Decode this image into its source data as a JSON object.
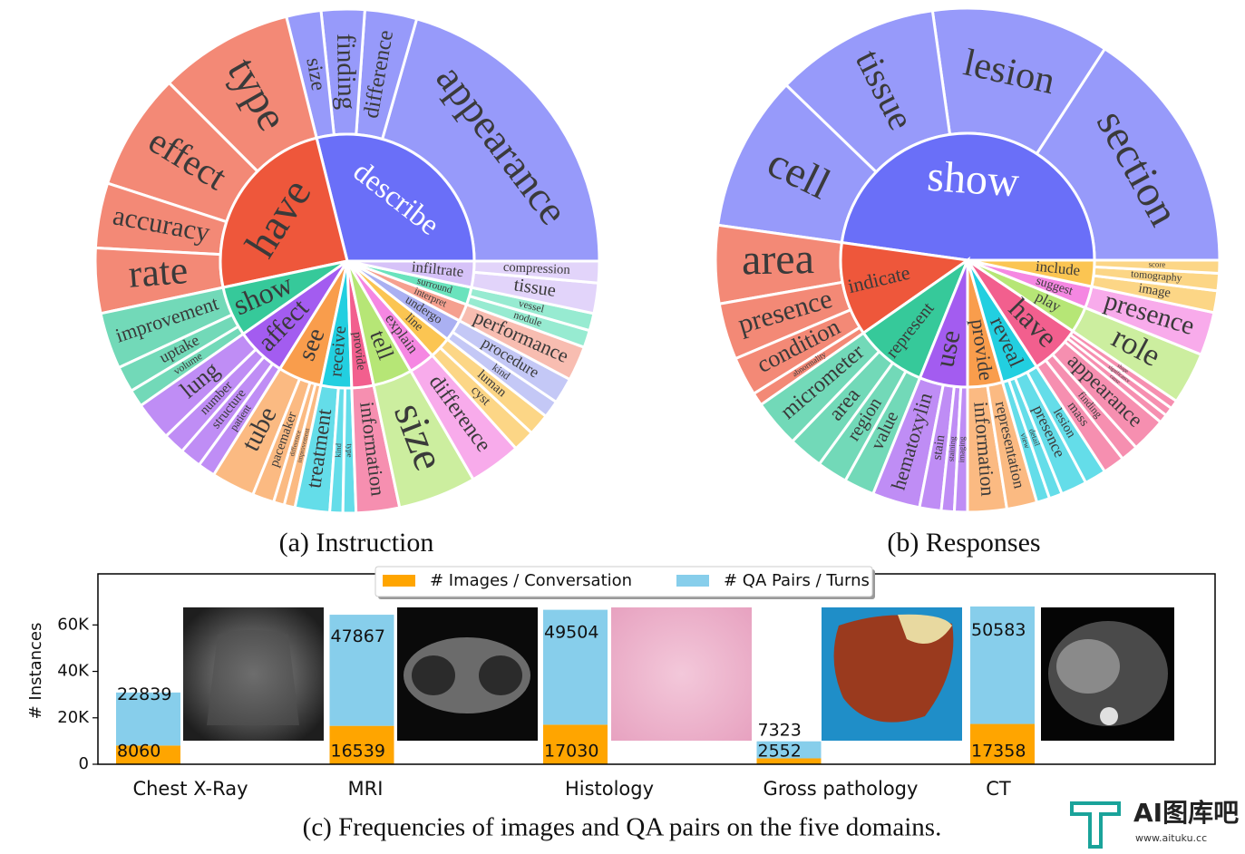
{
  "chart_data": [
    {
      "type": "sunburst",
      "title": "(a) Instruction",
      "nodes": [
        {
          "name": "describe",
          "color": "#6a6ff8",
          "value": 104,
          "children": [
            {
              "name": "appearance",
              "value": 74
            },
            {
              "name": "difference",
              "value": 12
            },
            {
              "name": "finding",
              "value": 10
            },
            {
              "name": "size",
              "value": 8
            }
          ]
        },
        {
          "name": "have",
          "color": "#ee573b",
          "value": 88,
          "children": [
            {
              "name": "type",
              "value": 31
            },
            {
              "name": "effect",
              "value": 27
            },
            {
              "name": "accuracy",
              "value": 15
            },
            {
              "name": "rate",
              "value": 15
            }
          ]
        },
        {
          "name": "show",
          "color": "#36c99a",
          "value": 23,
          "children": [
            {
              "name": "improvement",
              "value": 13
            },
            {
              "name": "uptake",
              "value": 6
            },
            {
              "name": "volume",
              "value": 4
            }
          ]
        },
        {
          "name": "affect",
          "color": "#a35cf0",
          "value": 23,
          "children": [
            {
              "name": "lung",
              "value": 9
            },
            {
              "name": "number",
              "value": 5
            },
            {
              "name": "structure",
              "value": 5
            },
            {
              "name": "patient",
              "value": 4
            }
          ]
        },
        {
          "name": "see",
          "color": "#f99d4c",
          "value": 20,
          "children": [
            {
              "name": "tube",
              "value": 10
            },
            {
              "name": "pacemaker",
              "value": 5
            },
            {
              "name": "difference",
              "value": 2.5
            },
            {
              "name": "improvement",
              "value": 2.5
            }
          ]
        },
        {
          "name": "receive",
          "color": "#22cfe0",
          "value": 14,
          "children": [
            {
              "name": "treatment",
              "value": 8
            },
            {
              "name": "kind",
              "value": 3
            },
            {
              "name": "type",
              "value": 3
            }
          ]
        },
        {
          "name": "provide",
          "color": "#f25f8e",
          "value": 10,
          "children": [
            {
              "name": "information",
              "value": 10
            }
          ]
        },
        {
          "name": "tell",
          "color": "#b6e676",
          "value": 18,
          "children": [
            {
              "name": "size",
              "value": 18
            }
          ]
        },
        {
          "name": "explain",
          "color": "#f587e2",
          "value": 12,
          "children": [
            {
              "name": "difference",
              "value": 12
            }
          ]
        },
        {
          "name": "line",
          "color": "#fbc552",
          "value": 10,
          "children": [
            {
              "name": "cyst",
              "value": 5
            },
            {
              "name": "luman",
              "value": 5
            }
          ]
        },
        {
          "name": "undergo",
          "color": "#aab0f2",
          "value": 10,
          "children": [
            {
              "name": "kind",
              "value": 4
            },
            {
              "name": "procedure",
              "value": 6
            }
          ]
        },
        {
          "name": "interpret",
          "color": "#f5a08f",
          "value": 8,
          "children": [
            {
              "name": "performance",
              "value": 8
            }
          ]
        },
        {
          "name": "surround",
          "color": "#6ae3bd",
          "value": 8,
          "children": [
            {
              "name": "nodule",
              "value": 4
            },
            {
              "name": "vessel",
              "value": 4
            }
          ]
        },
        {
          "name": "infiltrate",
          "color": "#d6c2f8",
          "value": 12,
          "children": [
            {
              "name": "tissue",
              "value": 7
            },
            {
              "name": "compression",
              "value": 5
            }
          ]
        }
      ]
    },
    {
      "type": "sunburst",
      "title": "(b) Responses",
      "nodes": [
        {
          "name": "show",
          "color": "#6a6ff8",
          "value": 172,
          "children": [
            {
              "name": "section",
              "value": 57
            },
            {
              "name": "lesion",
              "value": 41
            },
            {
              "name": "tissue",
              "value": 38
            },
            {
              "name": "cell",
              "value": 36
            }
          ]
        },
        {
          "name": "indicate",
          "color": "#ee573b",
          "value": 43,
          "children": [
            {
              "name": "area",
              "value": 18
            },
            {
              "name": "presence",
              "value": 13
            },
            {
              "name": "condition",
              "value": 9
            },
            {
              "name": "abnormality",
              "value": 3
            }
          ]
        },
        {
          "name": "represent",
          "color": "#36c99a",
          "value": 33,
          "children": [
            {
              "name": "micrometer",
              "value": 11
            },
            {
              "name": "area",
              "value": 8
            },
            {
              "name": "region",
              "value": 7
            },
            {
              "name": "value",
              "value": 7
            }
          ]
        },
        {
          "name": "use",
          "color": "#a35cf0",
          "value": 22,
          "children": [
            {
              "name": "hematoxylin",
              "value": 11
            },
            {
              "name": "stain",
              "value": 5
            },
            {
              "name": "staining",
              "value": 3
            },
            {
              "name": "imaging",
              "value": 3
            }
          ]
        },
        {
          "name": "provide",
          "color": "#f99d4c",
          "value": 16,
          "children": [
            {
              "name": "information",
              "value": 9
            },
            {
              "name": "representation",
              "value": 7
            }
          ]
        },
        {
          "name": "reveal",
          "color": "#22cfe0",
          "value": 17,
          "children": [
            {
              "name": "view",
              "value": 3
            },
            {
              "name": "detail",
              "value": 3
            },
            {
              "name": "presence",
              "value": 6
            },
            {
              "name": "lesion",
              "value": 5
            }
          ]
        },
        {
          "name": "have",
          "color": "#f25f8e",
          "value": 23,
          "children": [
            {
              "name": "mass",
              "value": 5
            },
            {
              "name": "finding",
              "value": 4
            },
            {
              "name": "appearance",
              "value": 8
            },
            {
              "name": "cause",
              "value": 2
            },
            {
              "name": "significance",
              "value": 2
            },
            {
              "name": "shape",
              "value": 2
            }
          ]
        },
        {
          "name": "play",
          "color": "#b6e676",
          "value": 12,
          "children": [
            {
              "name": "role",
              "value": 12
            }
          ]
        },
        {
          "name": "suggest",
          "color": "#f587e2",
          "value": 10,
          "children": [
            {
              "name": "presence",
              "value": 10
            }
          ]
        },
        {
          "name": "include",
          "color": "#fbc552",
          "value": 12,
          "children": [
            {
              "name": "image",
              "value": 5
            },
            {
              "name": "tomography",
              "value": 4
            },
            {
              "name": "score",
              "value": 3
            }
          ]
        }
      ]
    },
    {
      "type": "bar",
      "stacked": true,
      "title": "(c) Frequencies of images and QA pairs on the five domains.",
      "y_label": "# Instances",
      "categories": [
        "Chest X-Ray",
        "MRI",
        "Histology",
        "Gross pathology",
        "CT"
      ],
      "series": [
        {
          "name": "# Images / Conversation",
          "color": "#ffa500",
          "values": [
            8060,
            16539,
            17030,
            2552,
            17358
          ]
        },
        {
          "name": "# QA Pairs / Turns",
          "color": "#87ceeb",
          "values": [
            22839,
            47867,
            49504,
            7323,
            50583
          ]
        }
      ],
      "ylim": [
        0,
        82000
      ],
      "yticks": [
        0,
        {
          "value": 20000,
          "label": "20K"
        },
        {
          "value": 40000,
          "label": "40K"
        },
        {
          "value": 60000,
          "label": "60K"
        }
      ],
      "legend": "upper center",
      "grid": false
    }
  ],
  "watermark": {
    "title": "AI图库吧",
    "url": "www.aituku.cc"
  }
}
